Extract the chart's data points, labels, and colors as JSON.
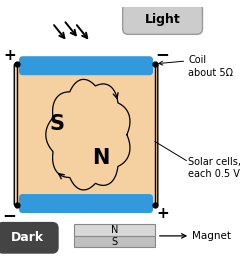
{
  "bg_color": "#ffffff",
  "panel_color": "#f5d0a0",
  "panel_border": "#000000",
  "blue_color": "#3399dd",
  "dark_box_color": "#444444",
  "light_box_color": "#cccccc",
  "magnet_N_color": "#d8d8d8",
  "magnet_S_color": "#c0c0c0",
  "coil_label": "Coil\nabout 5Ω",
  "solar_label": "Solar cells,\neach 0.5 V",
  "dark_label": "Dark",
  "light_label": "Light",
  "magnet_label": "Magnet",
  "pole_S": "S",
  "pole_N": "N",
  "magnet_N": "N",
  "magnet_S": "S",
  "plus": "+",
  "minus": "−"
}
